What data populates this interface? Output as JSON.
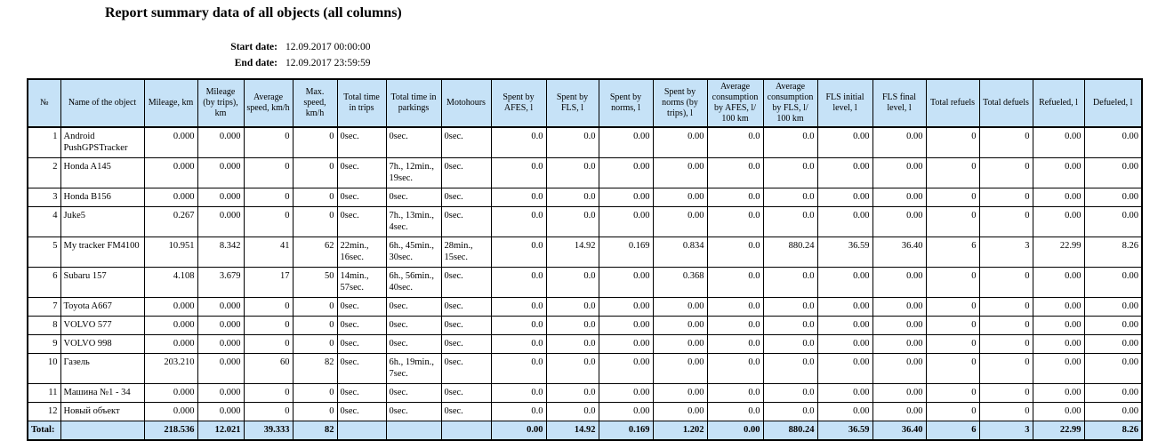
{
  "report": {
    "title": "Report summary data of all objects (all columns)",
    "start_date": {
      "label": "Start date:",
      "value": "12.09.2017 00:00:00"
    },
    "end_date": {
      "label": "End date:",
      "value": "12.09.2017 23:59:59"
    }
  },
  "colors": {
    "header_bg": "#c6e2f7",
    "total_bg": "#c6e2f7",
    "border": "#000000",
    "text": "#000000"
  },
  "table": {
    "columns": [
      "№",
      "Name of the object",
      "Mileage, km",
      "Mileage (by trips), km",
      "Average speed, km/h",
      "Max. speed, km/h",
      "Total time in trips",
      "Total time in parkings",
      "Motohours",
      "Spent by AFES, l",
      "Spent by FLS, l",
      "Spent by norms, l",
      "Spent by norms (by trips), l",
      "Average consumption by AFES, l/ 100 km",
      "Average consumption by FLS, l/ 100 km",
      "FLS initial level, l",
      "FLS final level, l",
      "Total refuels",
      "Total defuels",
      "Refueled, l",
      "Defueled, l"
    ],
    "rows": [
      [
        "1",
        "Android PushGPSTracker",
        "0.000",
        "0.000",
        "0",
        "0",
        "0sec.",
        "0sec.",
        "0sec.",
        "0.0",
        "0.0",
        "0.00",
        "0.00",
        "0.0",
        "0.0",
        "0.00",
        "0.00",
        "0",
        "0",
        "0.00",
        "0.00"
      ],
      [
        "2",
        "Honda A145",
        "0.000",
        "0.000",
        "0",
        "0",
        "0sec.",
        "7h., 12min., 19sec.",
        "0sec.",
        "0.0",
        "0.0",
        "0.00",
        "0.00",
        "0.0",
        "0.0",
        "0.00",
        "0.00",
        "0",
        "0",
        "0.00",
        "0.00"
      ],
      [
        "3",
        "Honda B156",
        "0.000",
        "0.000",
        "0",
        "0",
        "0sec.",
        "0sec.",
        "0sec.",
        "0.0",
        "0.0",
        "0.00",
        "0.00",
        "0.0",
        "0.0",
        "0.00",
        "0.00",
        "0",
        "0",
        "0.00",
        "0.00"
      ],
      [
        "4",
        "Juke5",
        "0.267",
        "0.000",
        "0",
        "0",
        "0sec.",
        "7h., 13min., 4sec.",
        "0sec.",
        "0.0",
        "0.0",
        "0.00",
        "0.00",
        "0.0",
        "0.0",
        "0.00",
        "0.00",
        "0",
        "0",
        "0.00",
        "0.00"
      ],
      [
        "5",
        "My tracker FM4100",
        "10.951",
        "8.342",
        "41",
        "62",
        "22min., 16sec.",
        "6h., 45min., 30sec.",
        "28min., 15sec.",
        "0.0",
        "14.92",
        "0.169",
        "0.834",
        "0.0",
        "880.24",
        "36.59",
        "36.40",
        "6",
        "3",
        "22.99",
        "8.26"
      ],
      [
        "6",
        "Subaru 157",
        "4.108",
        "3.679",
        "17",
        "50",
        "14min., 57sec.",
        "6h., 56min., 40sec.",
        "0sec.",
        "0.0",
        "0.0",
        "0.00",
        "0.368",
        "0.0",
        "0.0",
        "0.00",
        "0.00",
        "0",
        "0",
        "0.00",
        "0.00"
      ],
      [
        "7",
        "Toyota A667",
        "0.000",
        "0.000",
        "0",
        "0",
        "0sec.",
        "0sec.",
        "0sec.",
        "0.0",
        "0.0",
        "0.00",
        "0.00",
        "0.0",
        "0.0",
        "0.00",
        "0.00",
        "0",
        "0",
        "0.00",
        "0.00"
      ],
      [
        "8",
        "VOLVO 577",
        "0.000",
        "0.000",
        "0",
        "0",
        "0sec.",
        "0sec.",
        "0sec.",
        "0.0",
        "0.0",
        "0.00",
        "0.00",
        "0.0",
        "0.0",
        "0.00",
        "0.00",
        "0",
        "0",
        "0.00",
        "0.00"
      ],
      [
        "9",
        "VOLVO 998",
        "0.000",
        "0.000",
        "0",
        "0",
        "0sec.",
        "0sec.",
        "0sec.",
        "0.0",
        "0.0",
        "0.00",
        "0.00",
        "0.0",
        "0.0",
        "0.00",
        "0.00",
        "0",
        "0",
        "0.00",
        "0.00"
      ],
      [
        "10",
        "Газель",
        "203.210",
        "0.000",
        "60",
        "82",
        "0sec.",
        "6h., 19min., 7sec.",
        "0sec.",
        "0.0",
        "0.0",
        "0.00",
        "0.00",
        "0.0",
        "0.0",
        "0.00",
        "0.00",
        "0",
        "0",
        "0.00",
        "0.00"
      ],
      [
        "11",
        "Машина №1 - 34",
        "0.000",
        "0.000",
        "0",
        "0",
        "0sec.",
        "0sec.",
        "0sec.",
        "0.0",
        "0.0",
        "0.00",
        "0.00",
        "0.0",
        "0.0",
        "0.00",
        "0.00",
        "0",
        "0",
        "0.00",
        "0.00"
      ],
      [
        "12",
        "Новый объект",
        "0.000",
        "0.000",
        "0",
        "0",
        "0sec.",
        "0sec.",
        "0sec.",
        "0.0",
        "0.0",
        "0.00",
        "0.00",
        "0.0",
        "0.0",
        "0.00",
        "0.00",
        "0",
        "0",
        "0.00",
        "0.00"
      ]
    ],
    "total_row": [
      "Total:",
      "",
      "218.536",
      "12.021",
      "39.333",
      "82",
      "",
      "",
      "",
      "0.00",
      "14.92",
      "0.169",
      "1.202",
      "0.00",
      "880.24",
      "36.59",
      "36.40",
      "6",
      "3",
      "22.99",
      "8.26"
    ]
  }
}
